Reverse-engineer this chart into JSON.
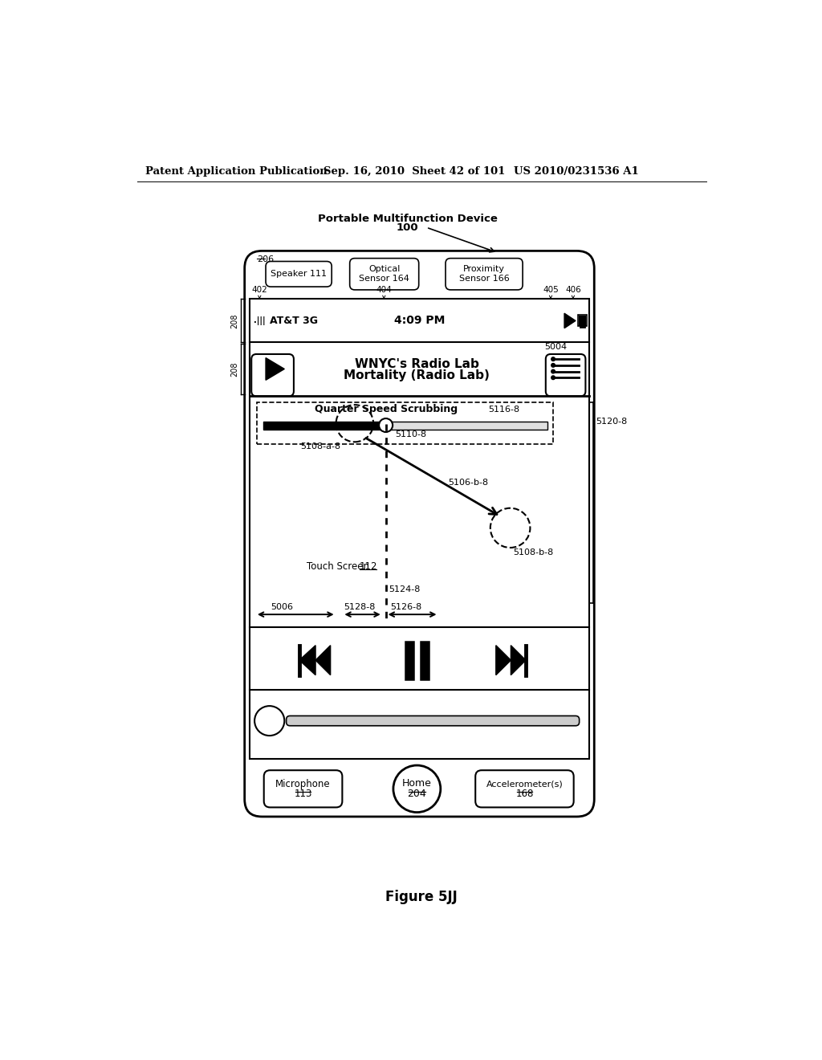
{
  "bg_color": "#ffffff",
  "header_text": "Patent Application Publication",
  "header_date": "Sep. 16, 2010  Sheet 42 of 101",
  "header_patent": "US 2010/0231536 A1",
  "figure_label": "Figure 5JJ",
  "device_label": "Portable Multifunction Device",
  "device_number": "100",
  "label_206": "206",
  "label_208a": "208",
  "label_208b": "208",
  "label_402": "402",
  "label_404": "404",
  "label_405": "405",
  "label_406": "406",
  "song_title": "WNYC's Radio Lab",
  "song_subtitle": "Mortality (Radio Lab)",
  "label_5004": "5004",
  "scrub_label": "Quarter Speed Scrubbing",
  "label_5116_8": "5116-8",
  "label_5110_8": "5110-8",
  "label_5108_a_8": "5108-a-8",
  "label_5120_8": "5120-8",
  "label_5106_b_8": "5106-b-8",
  "label_5108_b_8": "5108-b-8",
  "label_5124_8": "5124-8",
  "label_touch": "Touch Screen 112",
  "label_5006": "5006",
  "label_5128_8": "5128-8",
  "label_5126_8": "5126-8",
  "speaker_label": "Speaker 111",
  "optical_label": "Optical\nSensor 164",
  "proximity_label": "Proximity\nSensor 166",
  "mic_label": "Microphone\n113",
  "home_label": "Home\n204",
  "accel_label": "Accelerometer(s)\n168"
}
